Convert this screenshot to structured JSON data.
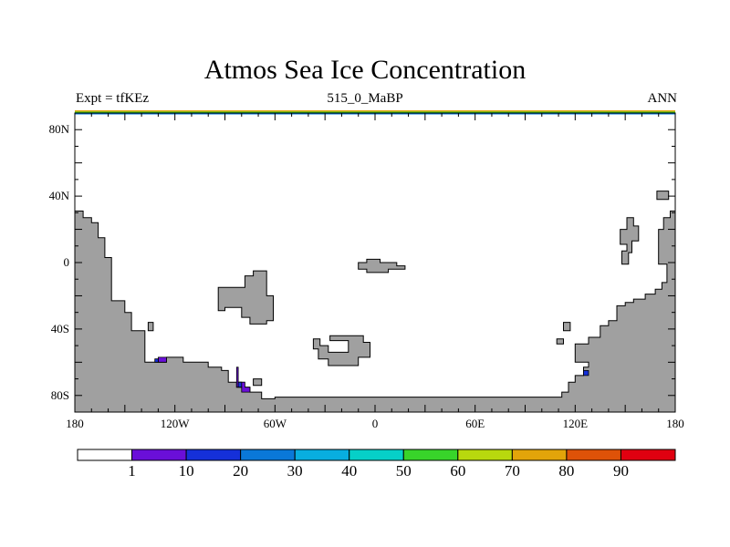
{
  "title": "Atmos Sea Ice Concentration",
  "subtitle_left": "Expt = tfKEz",
  "subtitle_center": "515_0_MaBP",
  "subtitle_right": "ANN",
  "chart_data": {
    "type": "heatmap",
    "title": "Atmos Sea Ice Concentration",
    "projection": "cylindrical equidistant",
    "xlim": [
      -180,
      180
    ],
    "ylim": [
      -90,
      90
    ],
    "x_ticks": [
      {
        "value": -180,
        "label": "180"
      },
      {
        "value": -120,
        "label": "120W"
      },
      {
        "value": -60,
        "label": "60W"
      },
      {
        "value": 0,
        "label": "0"
      },
      {
        "value": 60,
        "label": "60E"
      },
      {
        "value": 120,
        "label": "120E"
      },
      {
        "value": 180,
        "label": "180"
      }
    ],
    "y_ticks": [
      {
        "value": 80,
        "label": "80N"
      },
      {
        "value": 40,
        "label": "40N"
      },
      {
        "value": 0,
        "label": "0"
      },
      {
        "value": -40,
        "label": "40S"
      },
      {
        "value": -80,
        "label": "80S"
      }
    ],
    "land_color": "#a0a0a0",
    "colorbar": {
      "colors": [
        "#ffffff",
        "#6a0fd8",
        "#1530d9",
        "#0a78d8",
        "#08aee0",
        "#06d0c8",
        "#38d42a",
        "#b8d80e",
        "#e2a40a",
        "#de5208",
        "#e00010"
      ],
      "labels": [
        "1",
        "10",
        "20",
        "30",
        "40",
        "50",
        "60",
        "70",
        "80",
        "90"
      ]
    },
    "land": [
      [
        [
          -180,
          -90
        ],
        [
          -180,
          31
        ],
        [
          -175,
          31
        ],
        [
          -175,
          27
        ],
        [
          -170,
          27
        ],
        [
          -170,
          24
        ],
        [
          -166,
          24
        ],
        [
          -166,
          15
        ],
        [
          -162,
          15
        ],
        [
          -162,
          3
        ],
        [
          -158,
          3
        ],
        [
          -158,
          -23
        ],
        [
          -150,
          -23
        ],
        [
          -150,
          -30
        ],
        [
          -146,
          -30
        ],
        [
          -146,
          -41
        ],
        [
          -138,
          -41
        ],
        [
          -138,
          -60
        ],
        [
          -125,
          -60
        ],
        [
          -125,
          -57
        ],
        [
          -115,
          -57
        ],
        [
          -115,
          -60
        ],
        [
          -100,
          -60
        ],
        [
          -100,
          -63
        ],
        [
          -92,
          -63
        ],
        [
          -92,
          -65
        ],
        [
          -88,
          -65
        ],
        [
          -88,
          -72
        ],
        [
          -83,
          -72
        ],
        [
          -83,
          -75
        ],
        [
          -75,
          -75
        ],
        [
          -75,
          -78
        ],
        [
          -68,
          -78
        ],
        [
          -68,
          -82
        ],
        [
          -60,
          -82
        ],
        [
          -60,
          -81
        ],
        [
          112,
          -81
        ],
        [
          112,
          -78
        ],
        [
          116,
          -78
        ],
        [
          116,
          -72
        ],
        [
          120,
          -72
        ],
        [
          120,
          -68
        ],
        [
          125,
          -68
        ],
        [
          125,
          -63
        ],
        [
          128,
          -63
        ],
        [
          128,
          -60
        ],
        [
          120,
          -60
        ],
        [
          120,
          -49
        ],
        [
          128,
          -49
        ],
        [
          128,
          -45
        ],
        [
          135,
          -45
        ],
        [
          135,
          -38
        ],
        [
          140,
          -38
        ],
        [
          140,
          -35
        ],
        [
          145,
          -35
        ],
        [
          145,
          -26
        ],
        [
          150,
          -26
        ],
        [
          150,
          -24
        ],
        [
          155,
          -24
        ],
        [
          155,
          -22
        ],
        [
          162,
          -22
        ],
        [
          162,
          -19
        ],
        [
          168,
          -19
        ],
        [
          168,
          -16
        ],
        [
          172,
          -16
        ],
        [
          172,
          -12
        ],
        [
          175,
          -12
        ],
        [
          175,
          -1
        ],
        [
          170,
          -1
        ],
        [
          170,
          20
        ],
        [
          173,
          20
        ],
        [
          173,
          27
        ],
        [
          177,
          27
        ],
        [
          177,
          31
        ],
        [
          180,
          31
        ],
        [
          180,
          -90
        ]
      ],
      [
        [
          -94,
          -29
        ],
        [
          -94,
          -15
        ],
        [
          -78,
          -15
        ],
        [
          -78,
          -8
        ],
        [
          -73,
          -8
        ],
        [
          -73,
          -5
        ],
        [
          -65,
          -5
        ],
        [
          -65,
          -20
        ],
        [
          -61,
          -20
        ],
        [
          -61,
          -35
        ],
        [
          -65,
          -35
        ],
        [
          -65,
          -37
        ],
        [
          -75,
          -37
        ],
        [
          -75,
          -33
        ],
        [
          -80,
          -33
        ],
        [
          -80,
          -27
        ],
        [
          -90,
          -27
        ],
        [
          -90,
          -29
        ]
      ],
      [
        [
          -37,
          -52
        ],
        [
          -37,
          -46
        ],
        [
          -33,
          -46
        ],
        [
          -33,
          -50
        ],
        [
          -28,
          -50
        ],
        [
          -28,
          -54
        ],
        [
          -16,
          -54
        ],
        [
          -16,
          -47
        ],
        [
          -27,
          -47
        ],
        [
          -27,
          -44
        ],
        [
          -7,
          -44
        ],
        [
          -7,
          -48
        ],
        [
          -3,
          -48
        ],
        [
          -3,
          -57
        ],
        [
          -10,
          -57
        ],
        [
          -10,
          -62
        ],
        [
          -28,
          -62
        ],
        [
          -28,
          -58
        ],
        [
          -34,
          -58
        ],
        [
          -34,
          -52
        ]
      ],
      [
        [
          -10,
          -4
        ],
        [
          -10,
          0
        ],
        [
          -5,
          0
        ],
        [
          -5,
          2
        ],
        [
          3,
          2
        ],
        [
          3,
          0
        ],
        [
          13,
          0
        ],
        [
          13,
          -2
        ],
        [
          18,
          -2
        ],
        [
          18,
          -4
        ],
        [
          8,
          -4
        ],
        [
          8,
          -6
        ],
        [
          -5,
          -6
        ],
        [
          -5,
          -4
        ]
      ],
      [
        [
          148,
          -1
        ],
        [
          148,
          7
        ],
        [
          151,
          7
        ],
        [
          151,
          11
        ],
        [
          147,
          11
        ],
        [
          147,
          20
        ],
        [
          151,
          20
        ],
        [
          151,
          27
        ],
        [
          155,
          27
        ],
        [
          155,
          22
        ],
        [
          158,
          22
        ],
        [
          158,
          13
        ],
        [
          154,
          13
        ],
        [
          154,
          6
        ],
        [
          152,
          6
        ],
        [
          152,
          -1
        ]
      ],
      [
        [
          169,
          38
        ],
        [
          169,
          43
        ],
        [
          176,
          43
        ],
        [
          176,
          38
        ]
      ],
      [
        [
          -136,
          -36
        ],
        [
          -136,
          -41
        ],
        [
          -133,
          -41
        ],
        [
          -133,
          -36
        ]
      ],
      [
        [
          -73,
          -70
        ],
        [
          -73,
          -74
        ],
        [
          -68,
          -74
        ],
        [
          -68,
          -70
        ]
      ],
      [
        [
          113,
          -36
        ],
        [
          113,
          -41
        ],
        [
          117,
          -41
        ],
        [
          117,
          -36
        ]
      ],
      [
        [
          109,
          -46
        ],
        [
          109,
          -49
        ],
        [
          113,
          -49
        ],
        [
          113,
          -46
        ]
      ]
    ],
    "ice": [
      {
        "bin": 1,
        "polygon": [
          [
            -130,
            -57
          ],
          [
            -125,
            -57
          ],
          [
            -125,
            -60
          ],
          [
            -130,
            -60
          ]
        ]
      },
      {
        "bin": 1,
        "polygon": [
          [
            -82,
            -63
          ],
          [
            -82,
            -72
          ],
          [
            -78,
            -72
          ],
          [
            -78,
            -75
          ],
          [
            -75,
            -75
          ],
          [
            -75,
            -78
          ],
          [
            -80,
            -78
          ],
          [
            -80,
            -75
          ],
          [
            -83,
            -75
          ],
          [
            -83,
            -63
          ]
        ]
      },
      {
        "bin": 2,
        "polygon": [
          [
            -132,
            -58
          ],
          [
            -130,
            -58
          ],
          [
            -130,
            -60
          ],
          [
            -132,
            -60
          ]
        ]
      },
      {
        "bin": 2,
        "polygon": [
          [
            -82,
            -72
          ],
          [
            -80,
            -72
          ],
          [
            -80,
            -75
          ],
          [
            -82,
            -75
          ]
        ]
      },
      {
        "bin": 2,
        "polygon": [
          [
            125,
            -65
          ],
          [
            128,
            -65
          ],
          [
            128,
            -68
          ],
          [
            125,
            -68
          ]
        ]
      }
    ]
  }
}
